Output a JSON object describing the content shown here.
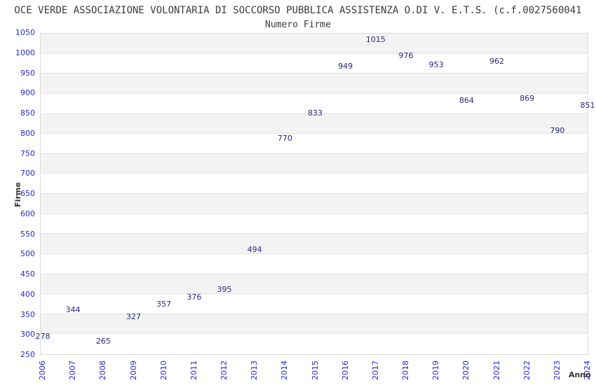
{
  "chart_data": {
    "type": "line",
    "title": "OCE VERDE ASSOCIAZIONE VOLONTARIA DI SOCCORSO PUBBLICA ASSISTENZA O.DI V. E.T.S. (c.f.0027560041",
    "subtitle": "Numero Firme",
    "xlabel": "Anno",
    "ylabel": "Firme",
    "x": [
      2006,
      2007,
      2008,
      2009,
      2010,
      2011,
      2012,
      2013,
      2014,
      2015,
      2016,
      2017,
      2018,
      2019,
      2020,
      2021,
      2022,
      2023,
      2024
    ],
    "values": [
      278,
      344,
      265,
      327,
      357,
      376,
      395,
      494,
      770,
      833,
      949,
      1015,
      976,
      953,
      864,
      962,
      869,
      790,
      851
    ],
    "ylim": [
      250,
      1050
    ],
    "ytick_step": 50,
    "grid": "horizontal-bands-alternating",
    "legend": "none",
    "colors": {
      "line": "#8abde9",
      "data_label": "#28287a",
      "tick_label": "#2929cc",
      "axis_title": "#333333",
      "band_shaded": "#f3f3f3",
      "band_plain": "#ffffff",
      "gridline": "#e3e3e3",
      "frame": "#dcdcdc",
      "background": "#ffffff",
      "title_text": "#3b3b3b"
    }
  }
}
